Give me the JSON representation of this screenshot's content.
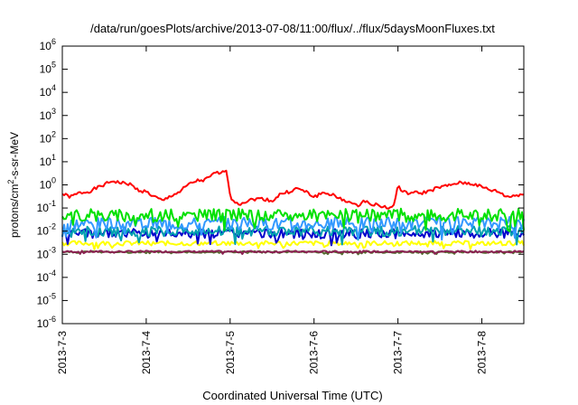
{
  "chart_data": {
    "type": "line",
    "title": "/data/run/goesPlots/archive/2013-07-08/11:00/flux/../flux/5daysMoonFluxes.txt",
    "xlabel": "Coordinated Universal Time (UTC)",
    "ylabel": "protons/cm2-s-sr-MeV",
    "ylabel_parts": {
      "pre": "protons/cm",
      "sup": "2",
      "post": "-s-sr-MeV"
    },
    "xlim_days": [
      0,
      5.5
    ],
    "x_ticks": [
      {
        "label": "2013-7-3",
        "day": 0
      },
      {
        "label": "2013-7-4",
        "day": 1
      },
      {
        "label": "2013-7-5",
        "day": 2
      },
      {
        "label": "2013-7-6",
        "day": 3
      },
      {
        "label": "2013-7-7",
        "day": 4
      },
      {
        "label": "2013-7-8",
        "day": 5
      }
    ],
    "y_scale": "log",
    "y_ticks": [
      {
        "base": "10",
        "exp": "-6",
        "value": 1e-06
      },
      {
        "base": "10",
        "exp": "-5",
        "value": 1e-05
      },
      {
        "base": "10",
        "exp": "-4",
        "value": 0.0001
      },
      {
        "base": "10",
        "exp": "-3",
        "value": 0.001
      },
      {
        "base": "10",
        "exp": "-2",
        "value": 0.01
      },
      {
        "base": "10",
        "exp": "-1",
        "value": 0.1
      },
      {
        "base": "10",
        "exp": "0",
        "value": 1
      },
      {
        "base": "10",
        "exp": "1",
        "value": 10
      },
      {
        "base": "10",
        "exp": "2",
        "value": 100
      },
      {
        "base": "10",
        "exp": "3",
        "value": 1000
      },
      {
        "base": "10",
        "exp": "4",
        "value": 10000
      },
      {
        "base": "10",
        "exp": "5",
        "value": 100000
      },
      {
        "base": "10",
        "exp": "6",
        "value": 1000000
      }
    ],
    "ylim": [
      1e-06,
      1000000.0
    ],
    "grid": false,
    "series": [
      {
        "color": "#ff0000",
        "x": [
          0,
          0.1,
          0.2,
          0.3,
          0.4,
          0.5,
          0.6,
          0.7,
          0.8,
          0.9,
          1.0,
          1.1,
          1.2,
          1.3,
          1.4,
          1.5,
          1.6,
          1.7,
          1.8,
          1.85,
          1.9,
          1.93,
          1.96,
          2.0,
          2.1,
          2.2,
          2.3,
          2.4,
          2.5,
          2.6,
          2.7,
          2.8,
          2.9,
          3.0,
          3.1,
          3.2,
          3.3,
          3.4,
          3.5,
          3.6,
          3.7,
          3.8,
          3.9,
          3.95,
          4.0,
          4.05,
          4.1,
          4.2,
          4.3,
          4.4,
          4.5,
          4.6,
          4.7,
          4.8,
          4.9,
          5.0,
          5.1,
          5.2,
          5.3,
          5.4,
          5.5
        ],
        "values": [
          0.4,
          0.3,
          0.45,
          0.5,
          0.7,
          1.0,
          1.5,
          1.2,
          1.1,
          0.6,
          0.5,
          0.3,
          0.2,
          0.35,
          0.5,
          1.0,
          1.5,
          1.6,
          2.8,
          3.5,
          2.9,
          4.2,
          4.8,
          0.28,
          0.15,
          0.2,
          0.25,
          0.25,
          0.2,
          0.4,
          0.5,
          0.7,
          0.5,
          0.3,
          0.45,
          0.4,
          0.25,
          0.2,
          0.12,
          0.2,
          0.15,
          0.12,
          0.1,
          0.12,
          1.0,
          0.5,
          0.45,
          0.45,
          0.45,
          0.6,
          0.8,
          0.9,
          1.2,
          1.2,
          1.1,
          0.8,
          0.6,
          0.5,
          0.3,
          0.35,
          0.4
        ],
        "noise": 0.15,
        "seed": 1
      },
      {
        "color": "#00e000",
        "base": 0.05,
        "noise": 0.55,
        "seed": 2
      },
      {
        "color": "#3399ff",
        "base": 0.022,
        "noise": 0.55,
        "seed": 3
      },
      {
        "color": "#00a0b0",
        "base": 0.01,
        "noise": 0.45,
        "seed": 4
      },
      {
        "color": "#0000cc",
        "base": 0.008,
        "noise": 0.4,
        "seed": 5
      },
      {
        "color": "#ffff00",
        "base": 0.003,
        "noise": 0.2,
        "seed": 6
      },
      {
        "color": "#8b2252",
        "base": 0.0013,
        "noise": 0.08,
        "seed": 7
      },
      {
        "color": "#556b2f",
        "base": 0.00125,
        "noise": 0.08,
        "seed": 8
      }
    ]
  }
}
